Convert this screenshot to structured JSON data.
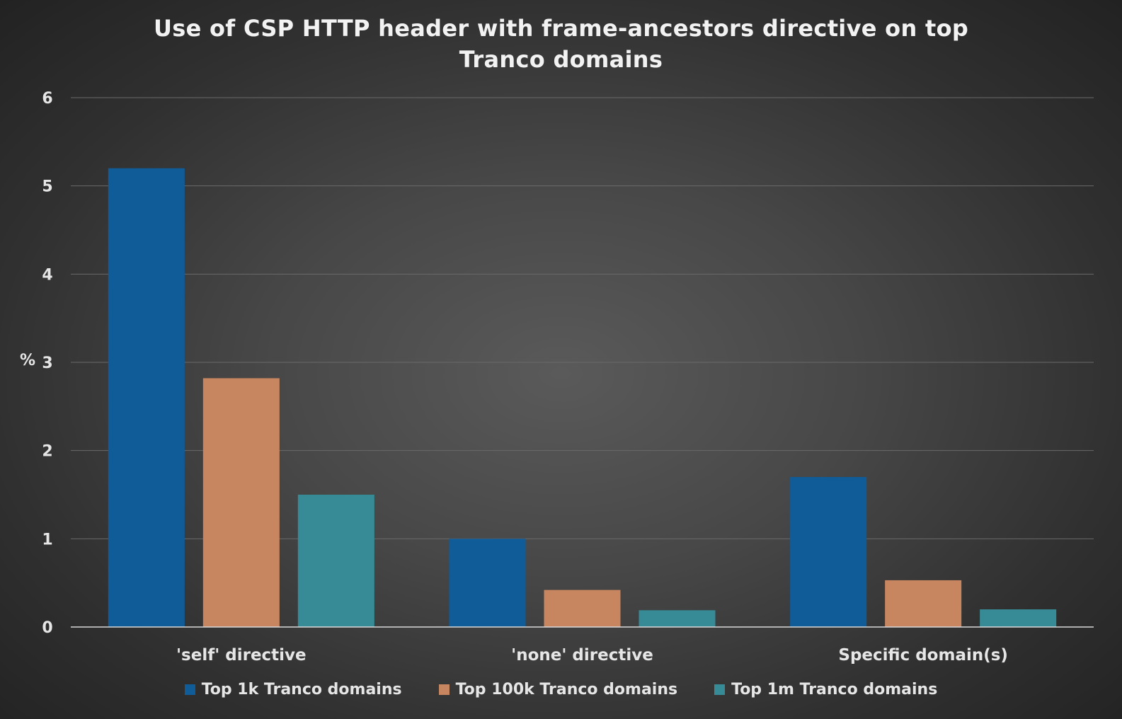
{
  "chart_data": {
    "type": "bar",
    "title": "Use of CSP HTTP header with frame-ancestors directive on top Tranco domains",
    "ylabel": "%",
    "xlabel": "",
    "ylim": [
      0,
      6
    ],
    "yticks": [
      0,
      1,
      2,
      3,
      4,
      5,
      6
    ],
    "grid": true,
    "legend_position": "bottom",
    "categories": [
      "'self' directive",
      "'none' directive",
      "Specific domain(s)"
    ],
    "series": [
      {
        "name": "Top 1k Tranco domains",
        "color": "#0f5c99",
        "values": [
          5.2,
          1.0,
          1.7
        ]
      },
      {
        "name": "Top 100k Tranco domains",
        "color": "#c88660",
        "values": [
          2.82,
          0.42,
          0.53
        ]
      },
      {
        "name": "Top 1m Tranco domains",
        "color": "#378b96",
        "values": [
          1.5,
          0.19,
          0.2
        ]
      }
    ]
  }
}
